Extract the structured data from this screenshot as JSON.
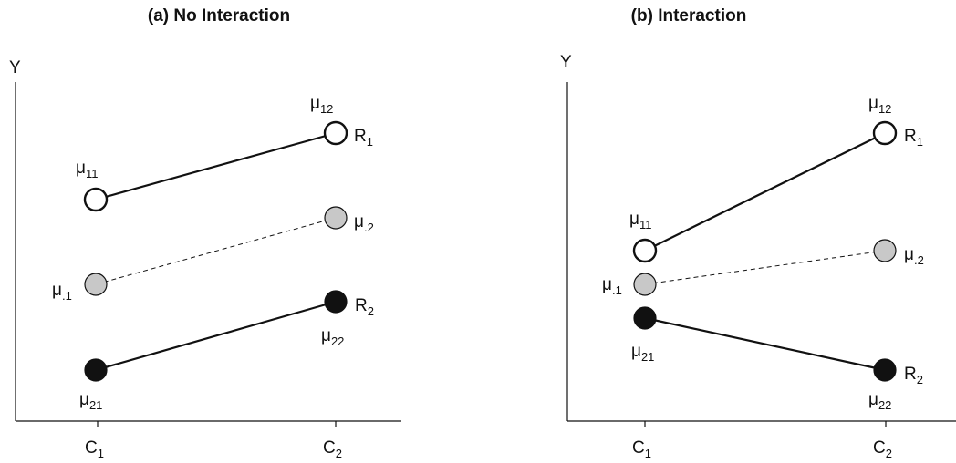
{
  "panels": [
    {
      "id": "a",
      "title": "(a) No Interaction",
      "y_label": "Y",
      "x_ticks": [
        {
          "main": "C",
          "sub": "1"
        },
        {
          "main": "C",
          "sub": "2"
        }
      ],
      "lines": [
        {
          "style": "solid",
          "from": "p11",
          "to": "p12"
        },
        {
          "style": "dashed",
          "from": "pm1",
          "to": "pm2"
        },
        {
          "style": "solid",
          "from": "p21",
          "to": "p22"
        }
      ],
      "points": [
        {
          "key": "p11",
          "fill": "white",
          "label": {
            "main": "μ",
            "sub": "11"
          }
        },
        {
          "key": "p12",
          "fill": "white",
          "label": {
            "main": "μ",
            "sub": "12"
          },
          "row_label": {
            "main": "R",
            "sub": "1"
          }
        },
        {
          "key": "pm1",
          "fill": "gray",
          "label": {
            "main": "μ",
            "sub": ".1"
          }
        },
        {
          "key": "pm2",
          "fill": "gray",
          "label": {
            "main": "μ",
            "sub": ".2"
          }
        },
        {
          "key": "p21",
          "fill": "black",
          "label": {
            "main": "μ",
            "sub": "21"
          }
        },
        {
          "key": "p22",
          "fill": "black",
          "label": {
            "main": "μ",
            "sub": "22"
          },
          "row_label": {
            "main": "R",
            "sub": "2"
          }
        }
      ]
    },
    {
      "id": "b",
      "title": "(b) Interaction",
      "y_label": "Y",
      "x_ticks": [
        {
          "main": "C",
          "sub": "1"
        },
        {
          "main": "C",
          "sub": "2"
        }
      ],
      "lines": [
        {
          "style": "solid",
          "from": "p11",
          "to": "p12"
        },
        {
          "style": "dashed",
          "from": "pm1",
          "to": "pm2"
        },
        {
          "style": "solid",
          "from": "p21",
          "to": "p22"
        }
      ],
      "points": [
        {
          "key": "p11",
          "fill": "white",
          "label": {
            "main": "μ",
            "sub": "11"
          }
        },
        {
          "key": "p12",
          "fill": "white",
          "label": {
            "main": "μ",
            "sub": "12"
          },
          "row_label": {
            "main": "R",
            "sub": "1"
          }
        },
        {
          "key": "pm1",
          "fill": "gray",
          "label": {
            "main": "μ",
            "sub": ".1"
          }
        },
        {
          "key": "pm2",
          "fill": "gray",
          "label": {
            "main": "μ",
            "sub": ".2"
          }
        },
        {
          "key": "p21",
          "fill": "black",
          "label": {
            "main": "μ",
            "sub": "21"
          }
        },
        {
          "key": "p22",
          "fill": "black",
          "label": {
            "main": "μ",
            "sub": "22"
          },
          "row_label": {
            "main": "R",
            "sub": "2"
          }
        }
      ]
    }
  ],
  "colors": {
    "white": "#ffffff",
    "gray": "#c8c8c8",
    "black": "#111111",
    "stroke": "#111111"
  }
}
